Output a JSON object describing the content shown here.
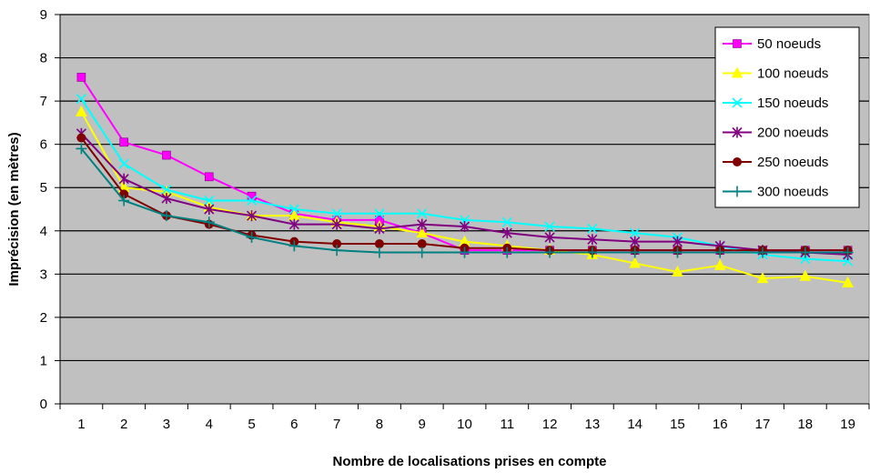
{
  "chart_data": {
    "type": "line",
    "title": "",
    "xlabel": "Nombre de localisations prises en compte",
    "ylabel": "Imprécision (en mètres)",
    "x": [
      1,
      2,
      3,
      4,
      5,
      6,
      7,
      8,
      9,
      10,
      11,
      12,
      13,
      14,
      15,
      16,
      17,
      18,
      19
    ],
    "ylim": [
      0,
      9
    ],
    "yticks": [
      0,
      1,
      2,
      3,
      4,
      5,
      6,
      7,
      8,
      9
    ],
    "grid": true,
    "plot_background": "#c0c0c0",
    "legend_position": "top-right",
    "series": [
      {
        "name": "50 noeuds",
        "color": "#ff00ff",
        "marker": "square",
        "values": [
          7.55,
          6.05,
          5.75,
          5.25,
          4.8,
          4.4,
          4.25,
          4.25,
          3.95,
          3.55,
          3.55,
          3.55,
          3.55,
          3.55,
          3.55,
          3.55,
          3.55,
          3.55,
          3.55
        ]
      },
      {
        "name": "100 noeuds",
        "color": "#ffff00",
        "marker": "triangle",
        "values": [
          6.75,
          5.0,
          4.9,
          4.55,
          4.35,
          4.35,
          4.2,
          4.1,
          3.95,
          3.75,
          3.65,
          3.55,
          3.45,
          3.25,
          3.05,
          3.2,
          2.9,
          2.95,
          2.8
        ]
      },
      {
        "name": "150 noeuds",
        "color": "#00ffff",
        "marker": "x",
        "values": [
          7.05,
          5.55,
          4.95,
          4.7,
          4.7,
          4.5,
          4.4,
          4.4,
          4.4,
          4.25,
          4.2,
          4.1,
          4.05,
          3.95,
          3.85,
          3.65,
          3.45,
          3.35,
          3.3
        ]
      },
      {
        "name": "200 noeuds",
        "color": "#800080",
        "marker": "star",
        "values": [
          6.25,
          5.2,
          4.75,
          4.5,
          4.35,
          4.15,
          4.15,
          4.05,
          4.15,
          4.1,
          3.95,
          3.85,
          3.8,
          3.75,
          3.75,
          3.65,
          3.55,
          3.5,
          3.45
        ]
      },
      {
        "name": "250 noeuds",
        "color": "#800000",
        "marker": "circle",
        "values": [
          6.15,
          4.85,
          4.35,
          4.15,
          3.9,
          3.75,
          3.7,
          3.7,
          3.7,
          3.6,
          3.6,
          3.55,
          3.55,
          3.55,
          3.55,
          3.55,
          3.55,
          3.55,
          3.55
        ]
      },
      {
        "name": "300 noeuds",
        "color": "#008080",
        "marker": "plus",
        "values": [
          5.9,
          4.7,
          4.35,
          4.2,
          3.85,
          3.65,
          3.55,
          3.5,
          3.5,
          3.5,
          3.5,
          3.5,
          3.5,
          3.5,
          3.5,
          3.5,
          3.5,
          3.5,
          3.5
        ]
      }
    ]
  }
}
